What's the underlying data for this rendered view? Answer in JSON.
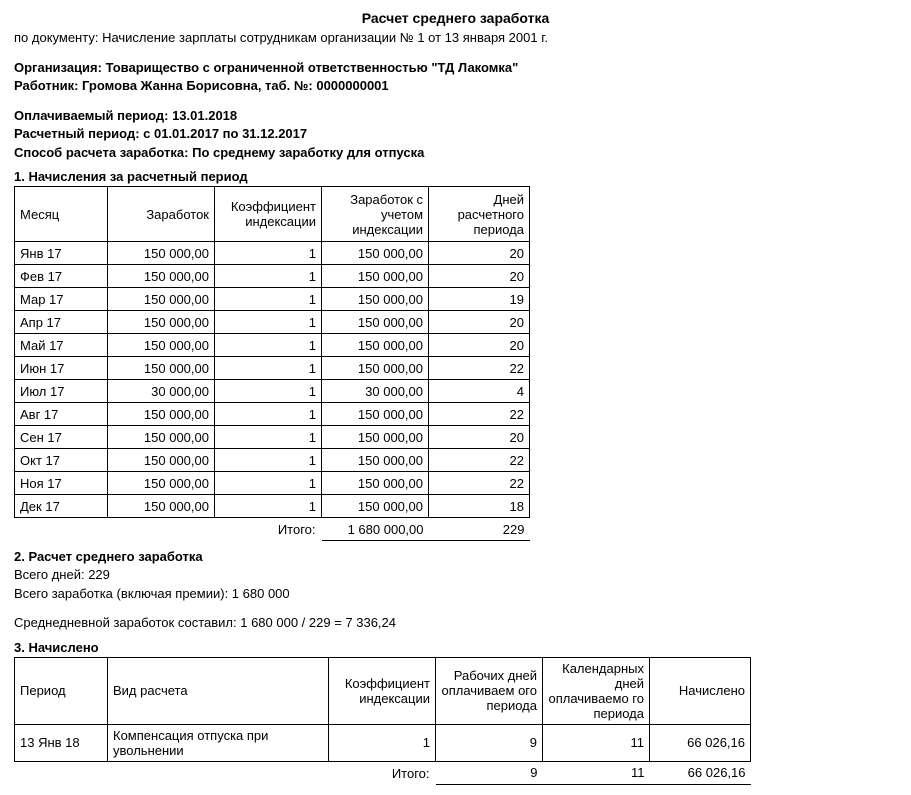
{
  "title": "Расчет среднего заработка",
  "header": {
    "doc_label": "по документу: ",
    "doc_value": "Начисление зарплаты сотрудникам организации № 1 от 13 января 2001 г.",
    "org_label": "Организация: ",
    "org_value": "Товарищество с ограниченной ответственностью \"ТД Лакомка\"",
    "emp_label": "Работник: ",
    "emp_value": "Громова Жанна Борисовна, таб. №: 0000000001",
    "paid_label": "Оплачиваемый период: ",
    "paid_value": "13.01.2018",
    "calc_label": "Расчетный период: ",
    "calc_value": "с 01.01.2017 по 31.12.2017",
    "method_label": "Способ расчета заработка: ",
    "method_value": "По среднему заработку для отпуска"
  },
  "section1": {
    "title": "1. Начисления за расчетный период",
    "columns": {
      "month": "Месяц",
      "earn": "Заработок",
      "idx": "Коэффициент индексации",
      "earnidx": "Заработок с учетом индексации",
      "days": "Дней расчетного периода"
    },
    "rows": [
      {
        "month": "Янв 17",
        "earn": "150 000,00",
        "idx": "1",
        "earnidx": "150 000,00",
        "days": "20"
      },
      {
        "month": "Фев 17",
        "earn": "150 000,00",
        "idx": "1",
        "earnidx": "150 000,00",
        "days": "20"
      },
      {
        "month": "Мар 17",
        "earn": "150 000,00",
        "idx": "1",
        "earnidx": "150 000,00",
        "days": "19"
      },
      {
        "month": "Апр 17",
        "earn": "150 000,00",
        "idx": "1",
        "earnidx": "150 000,00",
        "days": "20"
      },
      {
        "month": "Май 17",
        "earn": "150 000,00",
        "idx": "1",
        "earnidx": "150 000,00",
        "days": "20"
      },
      {
        "month": "Июн 17",
        "earn": "150 000,00",
        "idx": "1",
        "earnidx": "150 000,00",
        "days": "22"
      },
      {
        "month": "Июл 17",
        "earn": "30 000,00",
        "idx": "1",
        "earnidx": "30 000,00",
        "days": "4"
      },
      {
        "month": "Авг 17",
        "earn": "150 000,00",
        "idx": "1",
        "earnidx": "150 000,00",
        "days": "22"
      },
      {
        "month": "Сен 17",
        "earn": "150 000,00",
        "idx": "1",
        "earnidx": "150 000,00",
        "days": "20"
      },
      {
        "month": "Окт 17",
        "earn": "150 000,00",
        "idx": "1",
        "earnidx": "150 000,00",
        "days": "22"
      },
      {
        "month": "Ноя 17",
        "earn": "150 000,00",
        "idx": "1",
        "earnidx": "150 000,00",
        "days": "22"
      },
      {
        "month": "Дек 17",
        "earn": "150 000,00",
        "idx": "1",
        "earnidx": "150 000,00",
        "days": "18"
      }
    ],
    "totals": {
      "label": "Итого:",
      "earnidx": "1 680 000,00",
      "days": "229"
    }
  },
  "section2": {
    "title": "2. Расчет среднего  заработка",
    "total_days_label": "Всего дней: ",
    "total_days_value": "229",
    "total_earn_label": "Всего заработка (включая премии): ",
    "total_earn_value": "1 680 000",
    "avg_line": "Среднедневной заработок составил: 1 680 000 / 229 = 7 336,24"
  },
  "section3": {
    "title": "3. Начислено",
    "columns": {
      "period": "Период",
      "type": "Вид расчета",
      "idx": "Коэффициент индексации",
      "wdays": "Рабочих дней оплачиваем ого периода",
      "cdays": "Календарных дней оплачиваемо го периода",
      "acc": "Начислено"
    },
    "rows": [
      {
        "period": "13 Янв 18",
        "type": "Компенсация отпуска при увольнении",
        "idx": "1",
        "wdays": "9",
        "cdays": "11",
        "acc": "66 026,16"
      }
    ],
    "totals": {
      "label": "Итого:",
      "wdays": "9",
      "cdays": "11",
      "acc": "66 026,16"
    }
  }
}
